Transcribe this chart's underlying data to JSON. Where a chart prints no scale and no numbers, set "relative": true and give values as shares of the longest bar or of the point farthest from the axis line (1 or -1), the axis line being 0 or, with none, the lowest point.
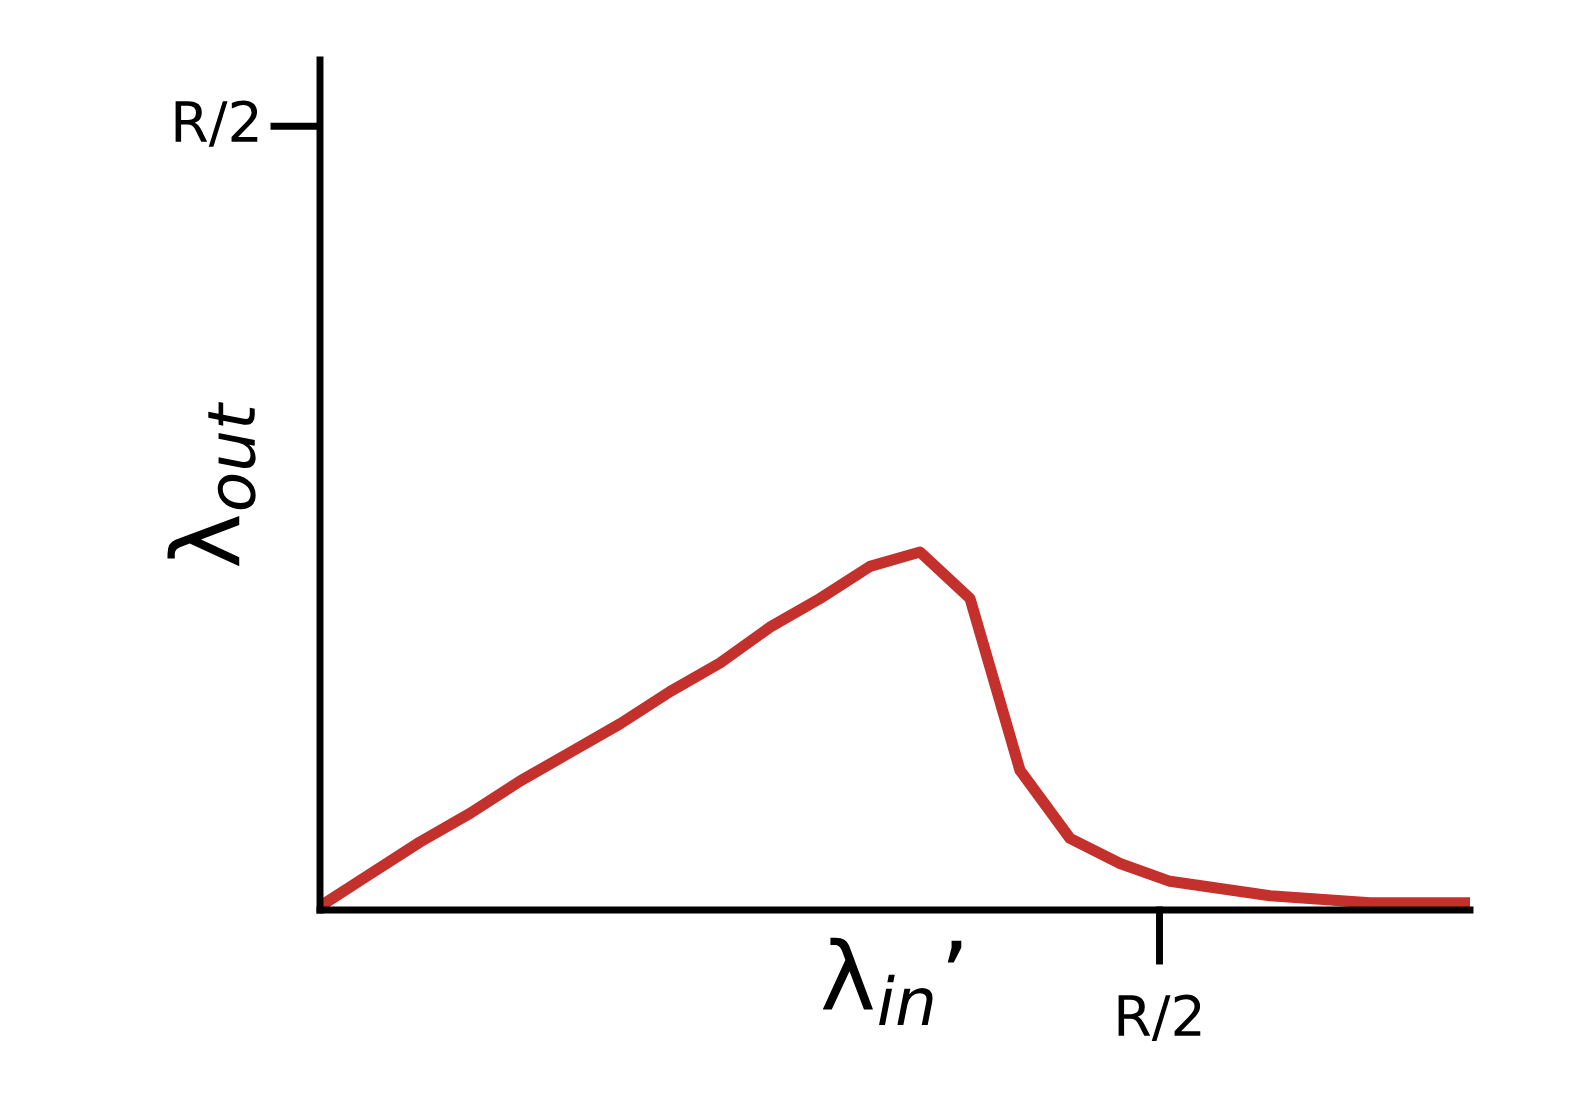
{
  "chart_data": {
    "type": "line",
    "xlabel": "λ$_{in}$’",
    "ylabel": "λ$_{out}$",
    "relative": true,
    "categories": [
      null,
      null,
      null,
      null,
      null,
      null,
      null,
      null,
      null,
      null,
      null,
      null,
      null,
      null,
      null,
      null,
      null,
      null,
      null,
      null,
      null,
      null,
      null,
      null
    ],
    "series": [
      {
        "color": "#c4302b",
        "values": [
          0.01,
          0.1,
          0.19,
          0.27,
          0.36,
          0.44,
          0.52,
          0.61,
          0.69,
          0.79,
          0.87,
          0.96,
          1.0,
          0.87,
          0.39,
          0.2,
          0.13,
          0.08,
          0.06,
          0.04,
          0.03,
          0.02,
          0.02,
          0.02
        ]
      }
    ],
    "annotations": [
      "R/2",
      "R/2"
    ],
    "legend": false,
    "marker": "none",
    "line_style": "solid"
  }
}
